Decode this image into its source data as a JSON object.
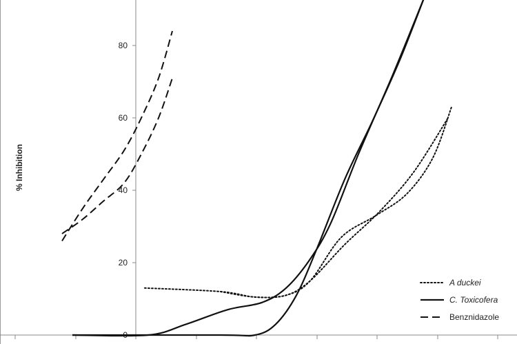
{
  "chart_data": {
    "type": "line",
    "ylabel": "% Inhibition",
    "xlabel": "",
    "ylim": [
      0,
      95
    ],
    "yticks": [
      0,
      20,
      40,
      60,
      80
    ],
    "grid": false,
    "legend_position": "bottom-right",
    "series": [
      {
        "name": "A duckei",
        "style": "dotted",
        "color": "#111111",
        "lines": [
          [
            [
              210,
              13
            ],
            [
              320,
              12
            ],
            [
              370,
              10.5
            ],
            [
              415,
              11
            ],
            [
              450,
              15
            ],
            [
              500,
              25
            ],
            [
              550,
              34
            ],
            [
              600,
              45
            ],
            [
              650,
              60
            ]
          ],
          [
            [
              320,
              12
            ],
            [
              370,
              10.5
            ],
            [
              415,
              11
            ],
            [
              450,
              15
            ],
            [
              495,
              27
            ],
            [
              545,
              33
            ],
            [
              590,
              39
            ],
            [
              628,
              49
            ],
            [
              655,
              63
            ]
          ]
        ]
      },
      {
        "name": "C. Toxicofera",
        "style": "solid",
        "color": "#111111",
        "lines": [
          [
            [
              105,
              0
            ],
            [
              215,
              0
            ],
            [
              270,
              3
            ],
            [
              330,
              7
            ],
            [
              380,
              9
            ],
            [
              415,
              13
            ],
            [
              450,
              21
            ],
            [
              480,
              31
            ],
            [
              520,
              50
            ],
            [
              570,
              72
            ],
            [
              617,
              94
            ]
          ],
          [
            [
              105,
              0
            ],
            [
              320,
              0
            ],
            [
              370,
              0
            ],
            [
              400,
              3
            ],
            [
              430,
              11
            ],
            [
              460,
              24
            ],
            [
              500,
              43
            ],
            [
              540,
              59
            ],
            [
              580,
              76
            ],
            [
              617,
              94
            ]
          ]
        ]
      },
      {
        "name": "Benznidazole",
        "style": "dashed",
        "color": "#111111",
        "lines": [
          [
            [
              90,
              26
            ],
            [
              120,
              35
            ],
            [
              150,
              43
            ],
            [
              180,
              51
            ],
            [
              205,
              60
            ],
            [
              230,
              71
            ],
            [
              250,
              84
            ]
          ],
          [
            [
              90,
              28
            ],
            [
              120,
              32
            ],
            [
              150,
              37
            ],
            [
              180,
              42
            ],
            [
              205,
              50
            ],
            [
              230,
              60
            ],
            [
              250,
              71
            ]
          ]
        ]
      }
    ]
  }
}
